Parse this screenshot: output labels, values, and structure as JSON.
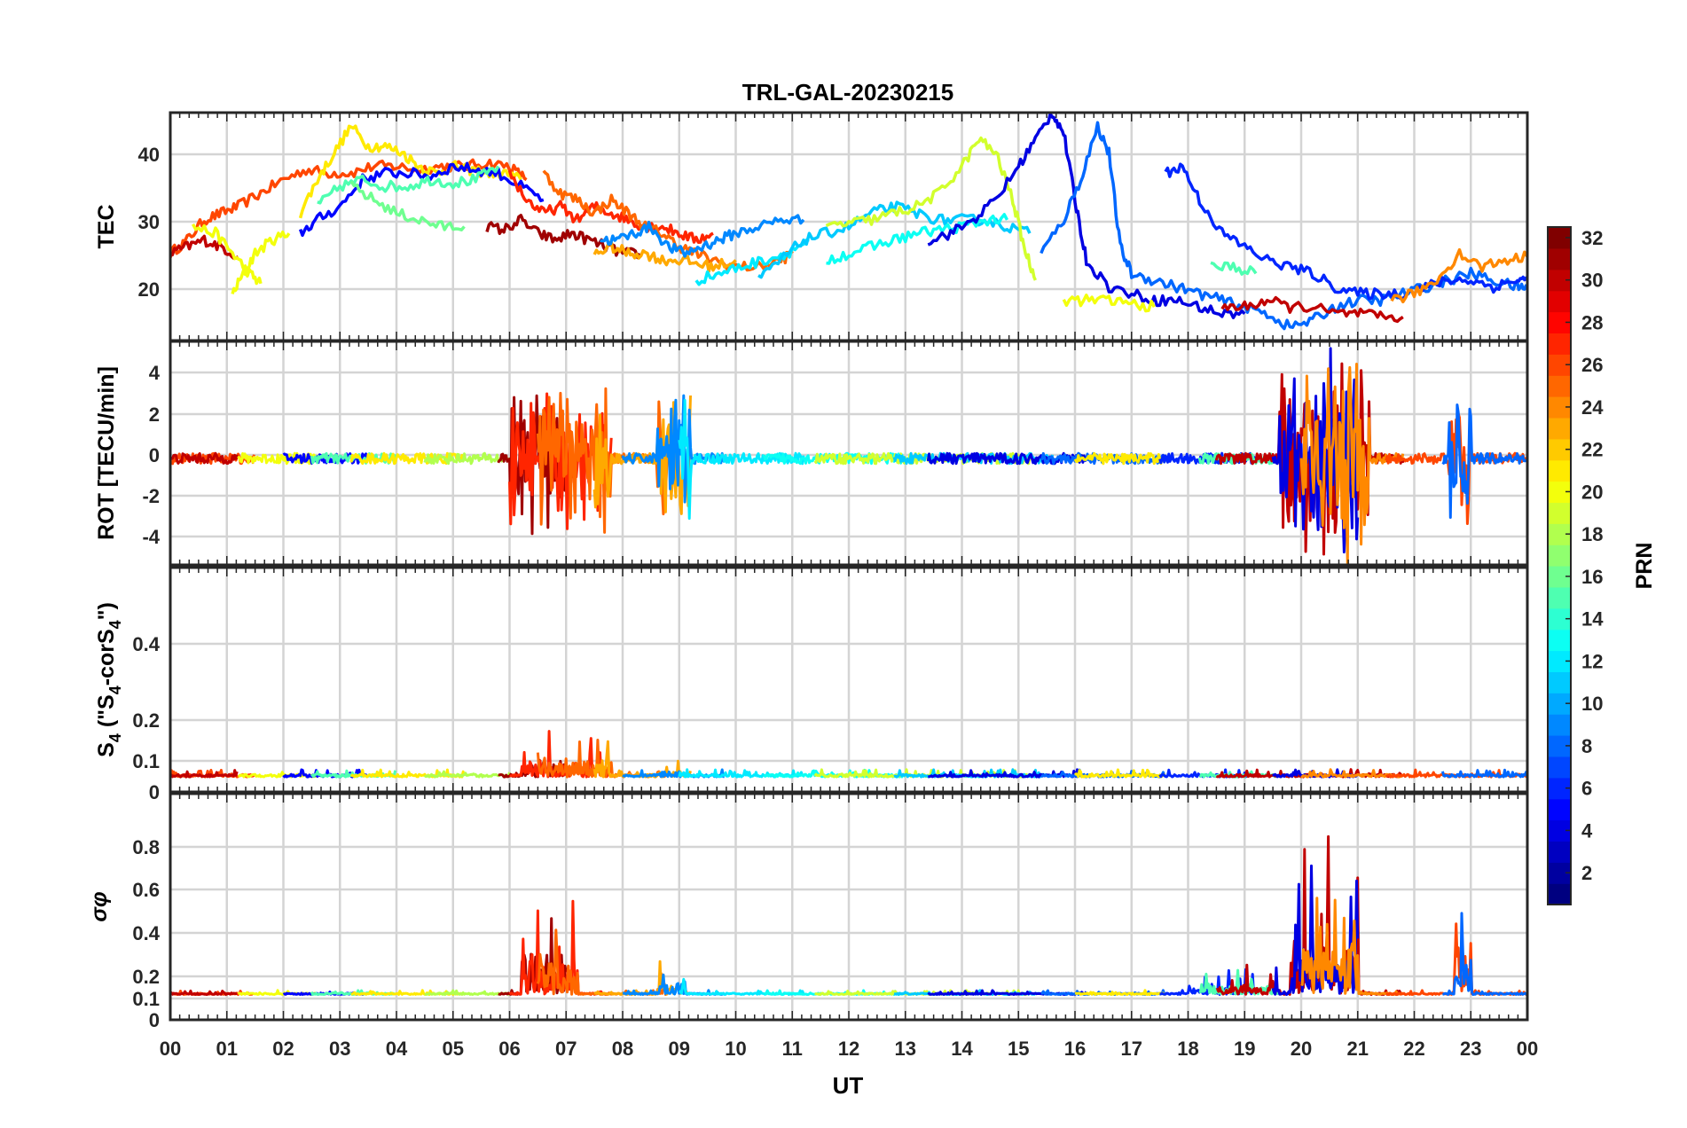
{
  "chart_data": {
    "type": "line",
    "title": "TRL-GAL-20230215",
    "xlabel": "UT",
    "x_ticks": [
      "00",
      "01",
      "02",
      "03",
      "04",
      "05",
      "06",
      "07",
      "08",
      "09",
      "10",
      "11",
      "12",
      "13",
      "14",
      "15",
      "16",
      "17",
      "18",
      "19",
      "20",
      "21",
      "22",
      "23",
      "00"
    ],
    "xlim": [
      0,
      24
    ],
    "grid": true,
    "colorbar": {
      "label": "PRN",
      "range": [
        1,
        32
      ],
      "ticks": [
        "2",
        "4",
        "6",
        "8",
        "10",
        "12",
        "14",
        "16",
        "18",
        "20",
        "22",
        "24",
        "26",
        "28",
        "30",
        "32"
      ],
      "colormap": "jet"
    },
    "panels": [
      {
        "ylabel": "TEC",
        "ylim": [
          12,
          46
        ],
        "yticks": [
          "20",
          "30",
          "40"
        ],
        "series": [
          {
            "prn": 26,
            "x": [
              0,
              0.3,
              0.6,
              0.9,
              1.2,
              1.6,
              2.0,
              2.4,
              2.8,
              3.2,
              3.6,
              4.0,
              4.4,
              4.8,
              5.2,
              5.6,
              6.0,
              6.3
            ],
            "y": [
              25,
              27,
              30,
              31,
              32,
              34,
              36,
              37.5,
              37,
              37,
              38,
              38,
              37.5,
              38,
              38,
              38.5,
              38,
              36
            ]
          },
          {
            "prn": 30,
            "x": [
              0,
              0.3,
              0.6,
              0.9,
              1.2
            ],
            "y": [
              25,
              26,
              27,
              26,
              24.5
            ]
          },
          {
            "prn": 20,
            "x": [
              0.4,
              0.8,
              1.1,
              1.4,
              1.6
            ],
            "y": [
              29,
              28,
              25,
              22,
              20.5
            ]
          },
          {
            "prn": 20,
            "x": [
              1.1,
              1.3,
              1.5,
              1.8,
              2.1
            ],
            "y": [
              19,
              22,
              25,
              27,
              28
            ]
          },
          {
            "prn": 21,
            "x": [
              2.3,
              2.6,
              2.9,
              3.2,
              3.5,
              3.8,
              4.1,
              4.4,
              4.7,
              5.0,
              5.3,
              5.6,
              5.9,
              6.2
            ],
            "y": [
              31,
              36,
              40,
              44,
              41,
              41,
              40,
              38,
              37,
              38,
              37.5,
              37,
              37,
              36
            ]
          },
          {
            "prn": 5,
            "x": [
              2.3,
              2.6,
              3.0,
              3.4,
              3.8,
              4.2,
              4.6,
              5.0,
              5.4,
              5.8,
              6.2,
              6.6
            ],
            "y": [
              28,
              30,
              32,
              36,
              37,
              37,
              36.5,
              38,
              37.5,
              37,
              35,
              33
            ]
          },
          {
            "prn": 15,
            "x": [
              2.6,
              3.0,
              3.4,
              3.8,
              4.2,
              4.6,
              5.0,
              5.4,
              5.8
            ],
            "y": [
              32,
              35,
              36,
              35,
              35,
              36,
              35.5,
              36,
              38
            ]
          },
          {
            "prn": 16,
            "x": [
              3.2,
              3.6,
              4.0,
              4.4,
              4.8,
              5.2
            ],
            "y": [
              35,
              33,
              31,
              30,
              29,
              29
            ]
          },
          {
            "prn": 31,
            "x": [
              5.6,
              5.9,
              6.2,
              6.5,
              6.8,
              7.1,
              7.4,
              7.7,
              8.0,
              8.3
            ],
            "y": [
              29,
              28.5,
              30,
              28,
              27,
              28,
              27,
              26,
              25,
              25
            ]
          },
          {
            "prn": 27,
            "x": [
              6.0,
              6.3,
              6.6,
              6.9,
              7.2,
              7.5,
              7.8,
              8.1,
              8.4,
              8.7,
              9.0,
              9.3,
              9.6
            ],
            "y": [
              37,
              33,
              31,
              32,
              30,
              32,
              31,
              30,
              29,
              29,
              28,
              27,
              28
            ]
          },
          {
            "prn": 25,
            "x": [
              6.6,
              6.9,
              7.2,
              7.5,
              7.8,
              8.1,
              8.4,
              8.7,
              9.0,
              9.3,
              9.6,
              10.0,
              10.4,
              10.8,
              11.0
            ],
            "y": [
              37,
              34,
              33,
              31,
              33,
              31,
              29,
              28,
              26,
              25,
              24,
              23,
              23,
              24,
              25
            ]
          },
          {
            "prn": 23,
            "x": [
              7.5,
              7.8,
              8.1,
              8.4,
              8.7,
              9.0,
              9.3,
              9.6,
              10.0
            ],
            "y": [
              25,
              26,
              25,
              25,
              24,
              24,
              23.5,
              23,
              24
            ]
          },
          {
            "prn": 9,
            "x": [
              7.6,
              7.9,
              8.2,
              8.5,
              8.8,
              9.1,
              9.4,
              9.7,
              10.0,
              10.4,
              10.8,
              11.2
            ],
            "y": [
              27,
              27,
              28,
              29,
              26,
              25,
              26,
              27,
              28,
              29,
              30,
              30
            ]
          },
          {
            "prn": 12,
            "x": [
              9.3,
              9.7,
              10.1,
              10.5,
              10.9,
              11.3
            ],
            "y": [
              21,
              22,
              23,
              24,
              25,
              27
            ]
          },
          {
            "prn": 11,
            "x": [
              10.4,
              10.8,
              11.2,
              11.6,
              12.0,
              12.4,
              12.8,
              13.2,
              13.6,
              14.0,
              14.4,
              14.8,
              15.2
            ],
            "y": [
              21,
              24,
              27,
              28,
              29,
              31,
              32,
              31,
              30,
              30,
              30,
              29,
              28
            ]
          },
          {
            "prn": 13,
            "x": [
              11.6,
              12.0,
              12.4,
              12.8,
              13.2,
              13.6,
              14.0,
              14.4,
              14.8
            ],
            "y": [
              24,
              25,
              26,
              27,
              28,
              28.5,
              29,
              30,
              30
            ]
          },
          {
            "prn": 19,
            "x": [
              11.6,
              12.0,
              12.4,
              12.8,
              13.2,
              13.6,
              14.0,
              14.3,
              14.6,
              14.9,
              15.1,
              15.3
            ],
            "y": [
              29,
              29.5,
              30,
              31,
              32,
              34,
              38,
              42,
              40,
              33,
              26,
              21
            ]
          },
          {
            "prn": 4,
            "x": [
              13.4,
              13.8,
              14.2,
              14.6,
              15.0,
              15.3,
              15.6,
              15.8,
              16.0,
              16.2,
              16.6,
              17.0,
              17.4,
              17.8,
              18.2,
              18.6,
              19.0
            ],
            "y": [
              27,
              28,
              30,
              33,
              38,
              42,
              46,
              43,
              33,
              24,
              20,
              19,
              18,
              18,
              17,
              16,
              16
            ]
          },
          {
            "prn": 8,
            "x": [
              15.4,
              15.8,
              16.1,
              16.4,
              16.6,
              16.8,
              17.0,
              17.4,
              17.8,
              18.2,
              18.6,
              19.0,
              19.4,
              19.8,
              20.2,
              20.6,
              21.0,
              21.4,
              21.8,
              22.2,
              22.6,
              23.0,
              23.4,
              23.8,
              24.0
            ],
            "y": [
              25,
              30,
              36,
              44,
              40,
              26,
              22,
              21,
              20,
              19,
              18,
              17,
              16,
              14,
              15,
              17,
              18,
              18,
              19,
              20,
              21,
              22,
              21,
              20,
              20
            ]
          },
          {
            "prn": 6,
            "x": [
              17.6,
              17.9,
              18.2,
              18.6,
              19.0,
              19.4,
              19.8,
              20.2,
              20.6,
              21.0,
              21.4,
              21.8,
              22.2,
              22.6,
              23.0,
              23.4,
              23.8,
              24.0
            ],
            "y": [
              37,
              38,
              33,
              28,
              26,
              24,
              23,
              22,
              20,
              19,
              19,
              19,
              20,
              21,
              21,
              20,
              21,
              21
            ]
          },
          {
            "prn": 20,
            "x": [
              15.8,
              16.2,
              16.6,
              17.0,
              17.4
            ],
            "y": [
              18,
              18,
              18,
              17.5,
              17
            ]
          },
          {
            "prn": 15,
            "x": [
              18.4,
              18.8,
              19.2
            ],
            "y": [
              23,
              23,
              22
            ]
          },
          {
            "prn": 30,
            "x": [
              18.6,
              19.0,
              19.4,
              19.8,
              20.2,
              20.6,
              21.0,
              21.4,
              21.8
            ],
            "y": [
              17,
              17,
              18,
              17,
              17,
              16,
              16,
              15.5,
              15.5
            ]
          },
          {
            "prn": 24,
            "x": [
              21.6,
              22.0,
              22.4,
              22.8,
              23.2,
              23.6,
              24.0
            ],
            "y": [
              18,
              19,
              21,
              25,
              23,
              24,
              24.5
            ]
          }
        ]
      },
      {
        "ylabel": "ROT [TECU/min]",
        "ylim": [
          -5.3,
          5.5
        ],
        "yticks": [
          "-4",
          "-2",
          "0",
          "2",
          "4"
        ]
      },
      {
        "ylabel": "S4 (\"S4-corS4\")",
        "ylim": [
          0,
          0.6
        ],
        "yticks": [
          "0",
          "0.1",
          "0.2",
          "0.4"
        ]
      },
      {
        "ylabel": "σφ",
        "ylim": [
          0,
          1.0
        ],
        "yticks": [
          "0",
          "0.1",
          "0.2",
          "0.4",
          "0.6",
          "0.8"
        ]
      }
    ]
  }
}
